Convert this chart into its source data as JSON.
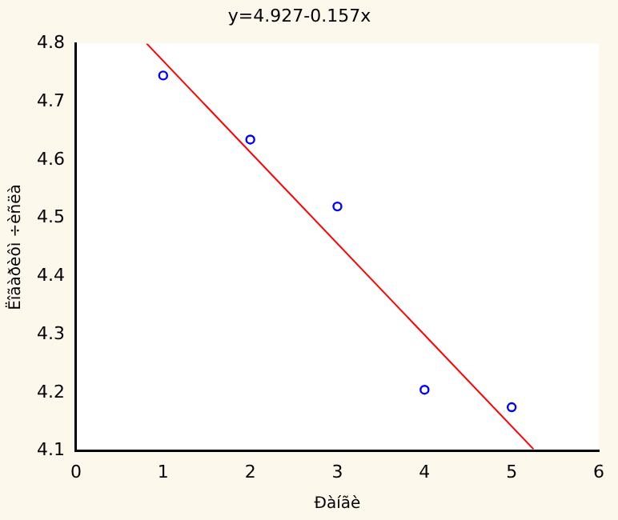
{
  "chart_data": {
    "type": "scatter",
    "title": "y=4.927-0.157x",
    "xlabel": "Ðàíãè",
    "ylabel": "Ëîãàðèôì ÷èñëà",
    "series": [
      {
        "color": "#0000ff",
        "marker": "circle",
        "x": [
          1,
          2,
          3,
          4,
          5
        ],
        "values": [
          4.745,
          4.635,
          4.52,
          4.205,
          4.175
        ]
      },
      {
        "type": "line",
        "color": "#ff0000",
        "marker": "none",
        "x": [
          0.81,
          5.25
        ],
        "values": [
          4.8,
          4.103
        ]
      }
    ],
    "xlim": [
      0,
      6
    ],
    "xticks": [
      0,
      1,
      2,
      3,
      4,
      5,
      6
    ],
    "ylim": [
      4.1,
      4.8
    ],
    "yticks": [
      4.1,
      4.2,
      4.3,
      4.4,
      4.5,
      4.6,
      4.7,
      4.8
    ],
    "grid": false,
    "legend": false
  }
}
